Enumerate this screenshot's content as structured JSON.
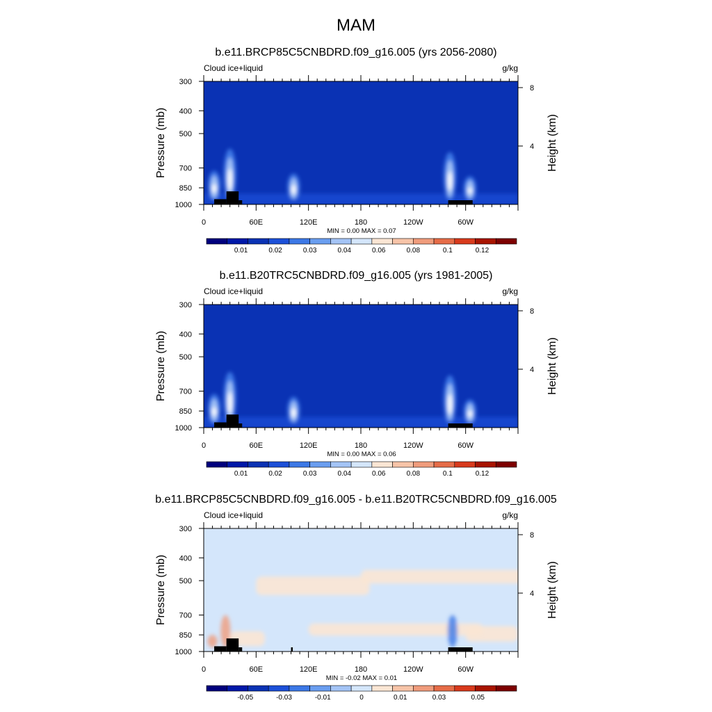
{
  "figure_title": "MAM",
  "chart_data": [
    {
      "type": "heatmap",
      "title": "b.e11.BRCP85C5CNBDRD.f09_g16.005 (yrs 2056-2080)",
      "left_label": "Cloud ice+liquid",
      "right_label": "g/kg",
      "ylabel": "Pressure (mb)",
      "ylabel_right": "Height (km)",
      "xlabel": "",
      "y_ticks": [
        "300",
        "400",
        "500",
        "700",
        "850",
        "1000"
      ],
      "y_tick_values": [
        300,
        400,
        500,
        700,
        850,
        1000
      ],
      "y_right_ticks": [
        "8",
        "4"
      ],
      "y_right_values": [
        8,
        4
      ],
      "x_ticks": [
        "0",
        "60E",
        "120E",
        "180",
        "120W",
        "60W"
      ],
      "x_tick_values": [
        0,
        60,
        120,
        180,
        240,
        300
      ],
      "xlim": [
        0,
        360
      ],
      "ylim": [
        1000,
        300
      ],
      "stats": "MIN =   0.00  MAX =   0.07",
      "colorbar_labels": [
        "0.01",
        "0.02",
        "0.03",
        "0.04",
        "0.06",
        "0.08",
        "0.1",
        "0.12"
      ],
      "background": "#0a32b4",
      "features": [
        {
          "lon": 12,
          "p_top": 720,
          "intensity": 0.6
        },
        {
          "lon": 30,
          "p_top": 580,
          "intensity": 0.85
        },
        {
          "lon": 103,
          "p_top": 740,
          "intensity": 0.7
        },
        {
          "lon": 282,
          "p_top": 600,
          "intensity": 0.8
        },
        {
          "lon": 305,
          "p_top": 760,
          "intensity": 0.5
        }
      ],
      "topography": [
        {
          "lon0": 12,
          "lon1": 26,
          "p": 950
        },
        {
          "lon0": 26,
          "lon1": 40,
          "p": 880
        },
        {
          "lon0": 40,
          "lon1": 44,
          "p": 960
        },
        {
          "lon0": 280,
          "lon1": 308,
          "p": 960
        }
      ]
    },
    {
      "type": "heatmap",
      "title": "b.e11.B20TRC5CNBDRD.f09_g16.005 (yrs 1981-2005)",
      "left_label": "Cloud ice+liquid",
      "right_label": "g/kg",
      "ylabel": "Pressure (mb)",
      "ylabel_right": "Height (km)",
      "xlabel": "",
      "y_ticks": [
        "300",
        "400",
        "500",
        "700",
        "850",
        "1000"
      ],
      "y_tick_values": [
        300,
        400,
        500,
        700,
        850,
        1000
      ],
      "y_right_ticks": [
        "8",
        "4"
      ],
      "y_right_values": [
        8,
        4
      ],
      "x_ticks": [
        "0",
        "60E",
        "120E",
        "180",
        "120W",
        "60W"
      ],
      "x_tick_values": [
        0,
        60,
        120,
        180,
        240,
        300
      ],
      "xlim": [
        0,
        360
      ],
      "ylim": [
        1000,
        300
      ],
      "stats": "MIN =   0.00  MAX =   0.06",
      "colorbar_labels": [
        "0.01",
        "0.02",
        "0.03",
        "0.04",
        "0.06",
        "0.08",
        "0.1",
        "0.12"
      ],
      "background": "#0a32b4",
      "features": [
        {
          "lon": 12,
          "p_top": 720,
          "intensity": 0.6
        },
        {
          "lon": 30,
          "p_top": 580,
          "intensity": 0.85
        },
        {
          "lon": 103,
          "p_top": 740,
          "intensity": 0.7
        },
        {
          "lon": 282,
          "p_top": 600,
          "intensity": 0.85
        },
        {
          "lon": 305,
          "p_top": 760,
          "intensity": 0.55
        }
      ],
      "topography": [
        {
          "lon0": 12,
          "lon1": 26,
          "p": 950
        },
        {
          "lon0": 26,
          "lon1": 40,
          "p": 880
        },
        {
          "lon0": 40,
          "lon1": 44,
          "p": 960
        },
        {
          "lon0": 280,
          "lon1": 308,
          "p": 960
        }
      ]
    },
    {
      "type": "heatmap",
      "title": "b.e11.BRCP85C5CNBDRD.f09_g16.005 - b.e11.B20TRC5CNBDRD.f09_g16.005",
      "left_label": "Cloud ice+liquid",
      "right_label": "g/kg",
      "ylabel": "Pressure (mb)",
      "ylabel_right": "Height (km)",
      "xlabel": "",
      "y_ticks": [
        "300",
        "400",
        "500",
        "700",
        "850",
        "1000"
      ],
      "y_tick_values": [
        300,
        400,
        500,
        700,
        850,
        1000
      ],
      "y_right_ticks": [
        "8",
        "4"
      ],
      "y_right_values": [
        8,
        4
      ],
      "x_ticks": [
        "0",
        "60E",
        "120E",
        "180",
        "120W",
        "60W"
      ],
      "x_tick_values": [
        0,
        60,
        120,
        180,
        240,
        300
      ],
      "xlim": [
        0,
        360
      ],
      "ylim": [
        1000,
        300
      ],
      "stats": "MIN =  -0.02  MAX =   0.01",
      "colorbar_labels": [
        "-0.05",
        "-0.03",
        "-0.01",
        "0",
        "0.01",
        "0.03",
        "0.05"
      ],
      "background": "#d4e6fb",
      "features": [
        {
          "lon": 285,
          "p_top": 700,
          "intensity": -0.4
        },
        {
          "lon": 25,
          "p_top": 700,
          "intensity": 0.35
        },
        {
          "lon": 10,
          "p_top": 850,
          "intensity": 0.5
        }
      ],
      "topography": [
        {
          "lon0": 12,
          "lon1": 26,
          "p": 950
        },
        {
          "lon0": 26,
          "lon1": 40,
          "p": 880
        },
        {
          "lon0": 40,
          "lon1": 44,
          "p": 960
        },
        {
          "lon0": 100,
          "lon1": 102,
          "p": 960
        },
        {
          "lon0": 280,
          "lon1": 308,
          "p": 960
        }
      ]
    }
  ],
  "colors": {
    "colormap": [
      "#00007d",
      "#0018a8",
      "#0a32b4",
      "#1c50d8",
      "#3c78e6",
      "#6a9ef0",
      "#a4c4f6",
      "#d4e6fb",
      "#fbe6d4",
      "#f7c4a8",
      "#f09c7c",
      "#e66c48",
      "#d83a1c",
      "#a81400",
      "#7d0000"
    ],
    "topography": "#000000"
  }
}
